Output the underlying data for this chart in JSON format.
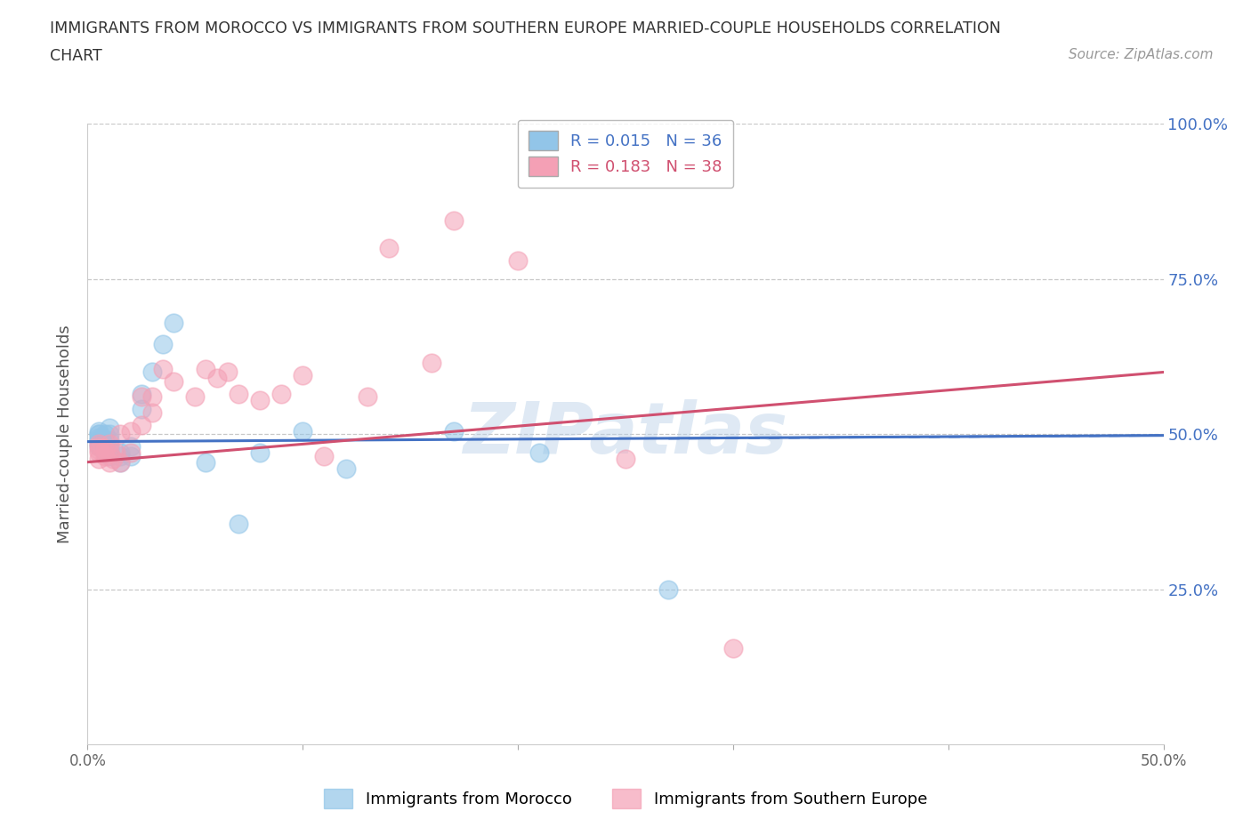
{
  "title_line1": "IMMIGRANTS FROM MOROCCO VS IMMIGRANTS FROM SOUTHERN EUROPE MARRIED-COUPLE HOUSEHOLDS CORRELATION",
  "title_line2": "CHART",
  "source": "Source: ZipAtlas.com",
  "ylabel": "Married-couple Households",
  "xlim": [
    0.0,
    0.5
  ],
  "ylim": [
    0.0,
    1.0
  ],
  "yticks": [
    0.0,
    0.25,
    0.5,
    0.75,
    1.0
  ],
  "ytick_labels": [
    "",
    "25.0%",
    "50.0%",
    "75.0%",
    "100.0%"
  ],
  "xticks": [
    0.0,
    0.1,
    0.2,
    0.3,
    0.4,
    0.5
  ],
  "xtick_labels": [
    "0.0%",
    "",
    "",
    "",
    "",
    "50.0%"
  ],
  "series1_label": "Immigrants from Morocco",
  "series1_color": "#92c5e8",
  "series1_line_color": "#4472c4",
  "series1_R": 0.015,
  "series1_N": 36,
  "series2_label": "Immigrants from Southern Europe",
  "series2_color": "#f4a0b5",
  "series2_line_color": "#d05070",
  "series2_R": 0.183,
  "series2_N": 38,
  "watermark": "ZIPatlas",
  "background_color": "#ffffff",
  "grid_color": "#c8c8c8",
  "title_color": "#333333",
  "right_axis_color": "#4472c4",
  "series1_x": [
    0.005,
    0.005,
    0.005,
    0.005,
    0.005,
    0.005,
    0.005,
    0.005,
    0.008,
    0.008,
    0.008,
    0.008,
    0.01,
    0.01,
    0.01,
    0.01,
    0.01,
    0.01,
    0.015,
    0.015,
    0.015,
    0.02,
    0.02,
    0.025,
    0.025,
    0.03,
    0.035,
    0.04,
    0.055,
    0.07,
    0.08,
    0.1,
    0.12,
    0.17,
    0.21,
    0.27
  ],
  "series1_y": [
    0.48,
    0.485,
    0.49,
    0.49,
    0.5,
    0.5,
    0.495,
    0.505,
    0.47,
    0.48,
    0.49,
    0.5,
    0.465,
    0.475,
    0.48,
    0.49,
    0.5,
    0.51,
    0.455,
    0.465,
    0.47,
    0.465,
    0.48,
    0.54,
    0.565,
    0.6,
    0.645,
    0.68,
    0.455,
    0.355,
    0.47,
    0.505,
    0.445,
    0.505,
    0.47,
    0.25
  ],
  "series2_x": [
    0.005,
    0.005,
    0.005,
    0.005,
    0.005,
    0.008,
    0.008,
    0.01,
    0.01,
    0.01,
    0.012,
    0.013,
    0.015,
    0.015,
    0.02,
    0.02,
    0.025,
    0.025,
    0.03,
    0.03,
    0.035,
    0.04,
    0.05,
    0.055,
    0.06,
    0.065,
    0.07,
    0.08,
    0.09,
    0.1,
    0.11,
    0.13,
    0.14,
    0.16,
    0.17,
    0.2,
    0.25,
    0.3
  ],
  "series2_y": [
    0.46,
    0.47,
    0.475,
    0.48,
    0.485,
    0.465,
    0.475,
    0.455,
    0.47,
    0.485,
    0.46,
    0.47,
    0.455,
    0.5,
    0.47,
    0.505,
    0.515,
    0.56,
    0.535,
    0.56,
    0.605,
    0.585,
    0.56,
    0.605,
    0.59,
    0.6,
    0.565,
    0.555,
    0.565,
    0.595,
    0.465,
    0.56,
    0.8,
    0.615,
    0.845,
    0.78,
    0.46,
    0.155
  ],
  "trendline1_x0": 0.0,
  "trendline1_x1": 0.5,
  "trendline1_y0": 0.488,
  "trendline1_y1": 0.498,
  "trendline2_x0": 0.0,
  "trendline2_x1": 0.5,
  "trendline2_y0": 0.455,
  "trendline2_y1": 0.6
}
